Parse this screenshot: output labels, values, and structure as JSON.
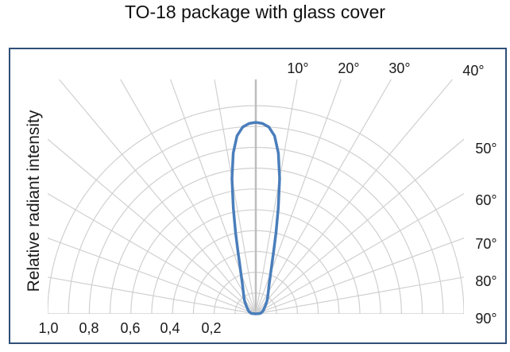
{
  "chart_data": {
    "type": "polar-radiation-pattern",
    "title": "TO-18 package with glass cover",
    "ylabel": "Relative radiant intensity",
    "radial_ticks": [
      "1,0",
      "0,8",
      "0,6",
      "0,4",
      "0,2"
    ],
    "angle_ticks": [
      "10°",
      "20°",
      "30°",
      "40°",
      "50°",
      "60°",
      "70°",
      "80°",
      "90°"
    ],
    "radial_range": [
      0,
      1.0
    ],
    "angle_range_deg": [
      -90,
      90
    ],
    "grid": true,
    "series": [
      {
        "name": "Relative radiant intensity",
        "angles_deg": [
          0,
          2,
          4,
          6,
          8,
          10,
          12,
          14,
          16,
          18,
          20,
          25,
          30,
          35,
          40,
          45,
          50,
          55,
          60,
          65,
          70,
          75,
          80,
          85,
          90
        ],
        "values": [
          0.92,
          0.915,
          0.9,
          0.86,
          0.78,
          0.66,
          0.52,
          0.4,
          0.31,
          0.25,
          0.21,
          0.15,
          0.12,
          0.1,
          0.085,
          0.07,
          0.06,
          0.05,
          0.045,
          0.04,
          0.035,
          0.03,
          0.025,
          0.02,
          0.0
        ],
        "symmetric": true,
        "color": "#4a7ebb"
      }
    ]
  },
  "colors": {
    "grid": "#d0d0d0",
    "frame": "#2f4f78",
    "curve": "#4a7ebb"
  }
}
